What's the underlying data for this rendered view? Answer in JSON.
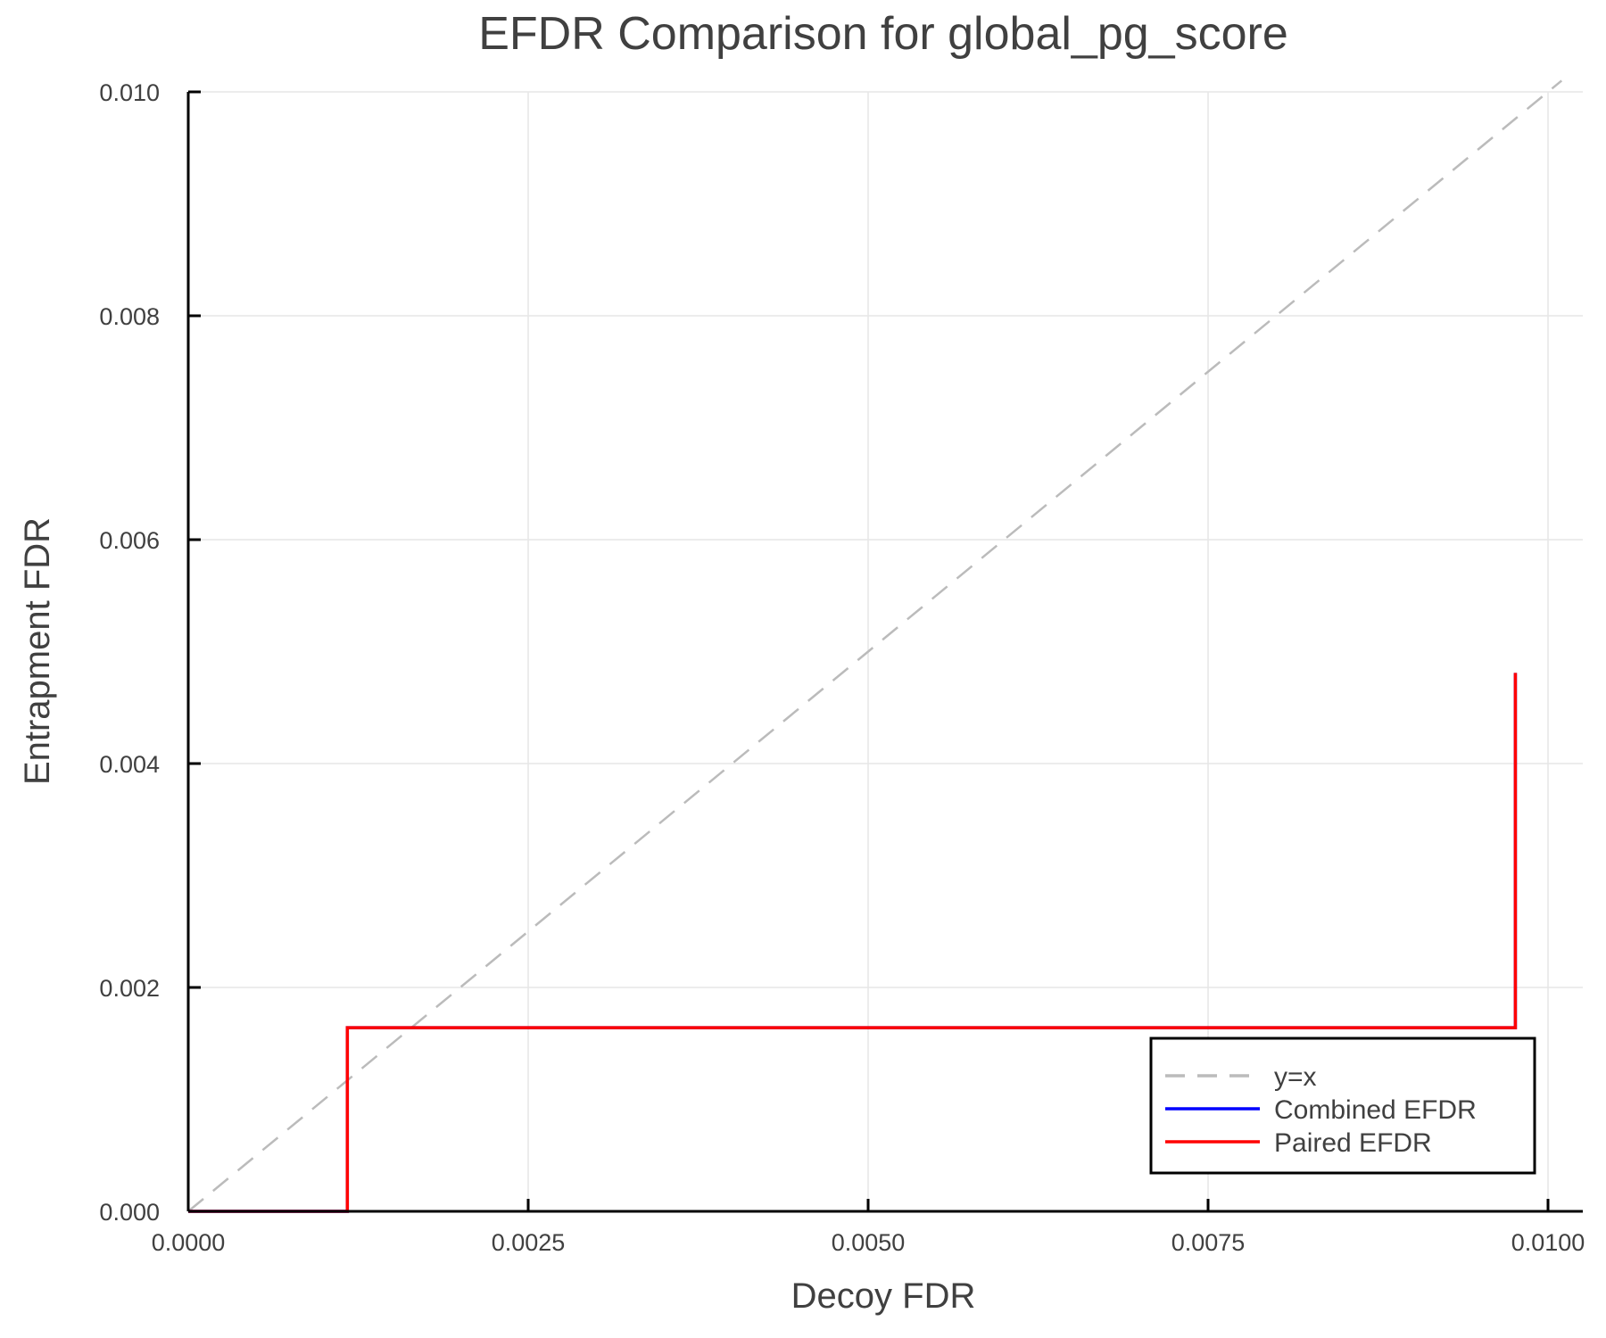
{
  "chart_data": {
    "type": "line",
    "title": "EFDR Comparison for global_pg_score",
    "xlabel": "Decoy FDR",
    "ylabel": "Entrapment FDR",
    "xlim": [
      0,
      0.0101
    ],
    "ylim": [
      0,
      0.01
    ],
    "xticks": [
      "0.0000",
      "0.0025",
      "0.0050",
      "0.0075",
      "0.0100"
    ],
    "xtick_values": [
      0,
      0.0025,
      0.005,
      0.0075,
      0.01
    ],
    "yticks": [
      "0.000",
      "0.002",
      "0.004",
      "0.006",
      "0.008",
      "0.010"
    ],
    "ytick_values": [
      0,
      0.002,
      0.004,
      0.006,
      0.008,
      0.01
    ],
    "grid": true,
    "legend_position": "bottom-right",
    "series": [
      {
        "name": "y=x",
        "color": "#bbbbbb",
        "style": "dashed",
        "x": [
          0,
          0.0101
        ],
        "y": [
          0,
          0.0101
        ]
      },
      {
        "name": "Combined EFDR",
        "color": "#0000ff",
        "style": "solid",
        "x": [
          0,
          0.00117,
          0.00117,
          0.00976,
          0.00976
        ],
        "y": [
          0,
          0,
          0.00164,
          0.00164,
          0.00481
        ]
      },
      {
        "name": "Paired EFDR",
        "color": "#ff0000",
        "style": "solid",
        "x": [
          0,
          0.00117,
          0.00117,
          0.00976,
          0.00976
        ],
        "y": [
          0,
          0,
          0.00164,
          0.00164,
          0.00481
        ]
      }
    ]
  }
}
